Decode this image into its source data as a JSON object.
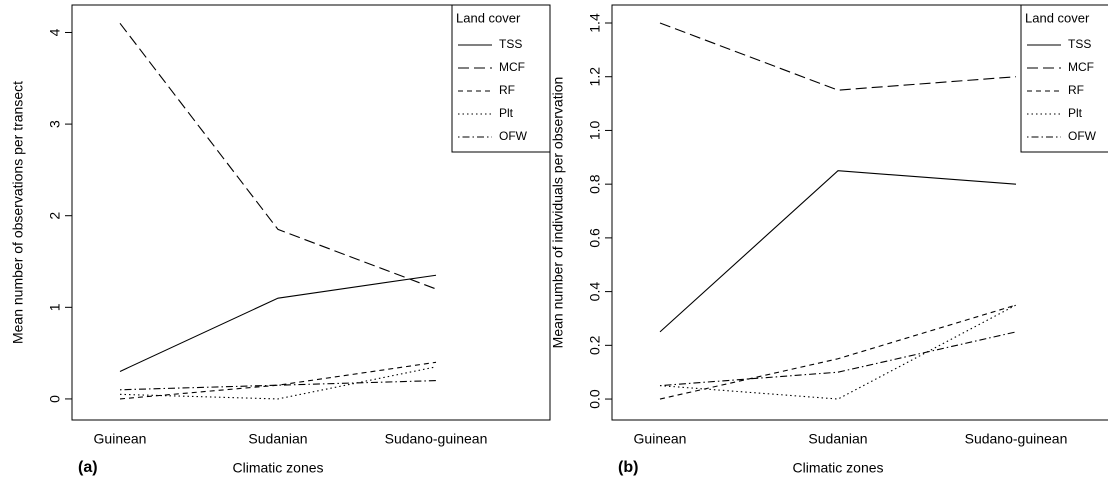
{
  "chart_data": [
    {
      "type": "line",
      "panel_label": "(a)",
      "x_label": "Climatic zones",
      "y_label": "Mean number of observations per transect",
      "categories": [
        "Guinean",
        "Sudanian",
        "Sudano-guinean"
      ],
      "ylim": [
        -0.23,
        4.3
      ],
      "yticks": [
        0,
        1,
        2,
        3,
        4
      ],
      "legend_title": "Land cover",
      "legend": "top-right",
      "series": [
        {
          "name": "TSS",
          "color": "#000000",
          "dash": "solid",
          "values": [
            0.3,
            1.1,
            1.35
          ]
        },
        {
          "name": "MCF",
          "color": "#000000",
          "dash": "longdash",
          "values": [
            4.1,
            1.85,
            1.2
          ]
        },
        {
          "name": "RF",
          "color": "#000000",
          "dash": "dashed",
          "values": [
            0.0,
            0.15,
            0.4
          ]
        },
        {
          "name": "Plt",
          "color": "#000000",
          "dash": "dotted",
          "values": [
            0.05,
            0.0,
            0.35
          ]
        },
        {
          "name": "OFW",
          "color": "#000000",
          "dash": "dotdash",
          "values": [
            0.1,
            0.15,
            0.2
          ]
        }
      ]
    },
    {
      "type": "line",
      "panel_label": "(b)",
      "x_label": "Climatic zones",
      "y_label": "Mean number of individuals per observation",
      "categories": [
        "Guinean",
        "Sudanian",
        "Sudano-guinean"
      ],
      "ylim": [
        -0.078,
        1.467
      ],
      "yticks": [
        {
          "value": 0,
          "label": "0.0"
        },
        0.2,
        0.4,
        0.6,
        0.8,
        {
          "value": 1,
          "label": "1.0"
        },
        1.2,
        1.4
      ],
      "legend_title": "Land cover",
      "legend": "top-right",
      "series": [
        {
          "name": "TSS",
          "color": "#000000",
          "dash": "solid",
          "values": [
            0.25,
            0.85,
            0.8
          ]
        },
        {
          "name": "MCF",
          "color": "#000000",
          "dash": "longdash",
          "values": [
            1.4,
            1.15,
            1.2
          ]
        },
        {
          "name": "RF",
          "color": "#000000",
          "dash": "dashed",
          "values": [
            0.0,
            0.15,
            0.35
          ]
        },
        {
          "name": "Plt",
          "color": "#000000",
          "dash": "dotted",
          "values": [
            0.05,
            0.0,
            0.35
          ]
        },
        {
          "name": "OFW",
          "color": "#000000",
          "dash": "dotdash",
          "values": [
            0.05,
            0.1,
            0.25
          ]
        }
      ]
    }
  ]
}
